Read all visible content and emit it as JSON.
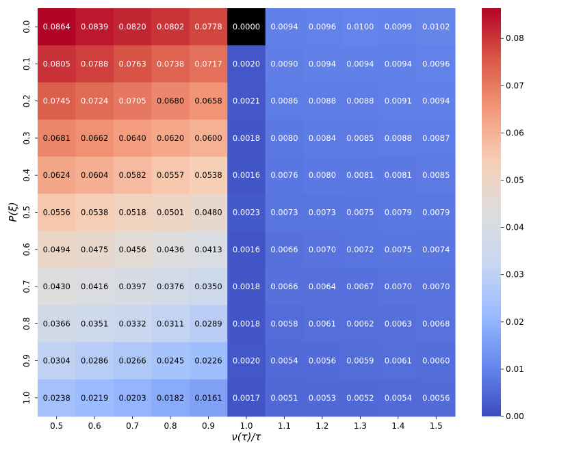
{
  "chart_data": {
    "type": "heatmap",
    "title": "",
    "xlabel": "ν(τ)/τ",
    "ylabel": "P(ξ)",
    "x_categories": [
      "0.5",
      "0.6",
      "0.7",
      "0.8",
      "0.9",
      "1.0",
      "1.1",
      "1.2",
      "1.3",
      "1.4",
      "1.5"
    ],
    "y_categories": [
      "0.0",
      "0.1",
      "0.2",
      "0.3",
      "0.4",
      "0.5",
      "0.6",
      "0.7",
      "0.8",
      "0.9",
      "1.0"
    ],
    "values": [
      [
        0.0864,
        0.0839,
        0.082,
        0.0802,
        0.0778,
        0.0,
        0.0094,
        0.0096,
        0.01,
        0.0099,
        0.0102
      ],
      [
        0.0805,
        0.0788,
        0.0763,
        0.0738,
        0.0717,
        0.002,
        0.009,
        0.0094,
        0.0094,
        0.0094,
        0.0096
      ],
      [
        0.0745,
        0.0724,
        0.0705,
        0.068,
        0.0658,
        0.0021,
        0.0086,
        0.0088,
        0.0088,
        0.0091,
        0.0094
      ],
      [
        0.0681,
        0.0662,
        0.064,
        0.062,
        0.06,
        0.0018,
        0.008,
        0.0084,
        0.0085,
        0.0088,
        0.0087
      ],
      [
        0.0624,
        0.0604,
        0.0582,
        0.0557,
        0.0538,
        0.0016,
        0.0076,
        0.008,
        0.0081,
        0.0081,
        0.0085
      ],
      [
        0.0556,
        0.0538,
        0.0518,
        0.0501,
        0.048,
        0.0023,
        0.0073,
        0.0073,
        0.0075,
        0.0079,
        0.0079
      ],
      [
        0.0494,
        0.0475,
        0.0456,
        0.0436,
        0.0413,
        0.0016,
        0.0066,
        0.007,
        0.0072,
        0.0075,
        0.0074
      ],
      [
        0.043,
        0.0416,
        0.0397,
        0.0376,
        0.035,
        0.0018,
        0.0066,
        0.0064,
        0.0067,
        0.007,
        0.007
      ],
      [
        0.0366,
        0.0351,
        0.0332,
        0.0311,
        0.0289,
        0.0018,
        0.0058,
        0.0061,
        0.0062,
        0.0063,
        0.0068
      ],
      [
        0.0304,
        0.0286,
        0.0266,
        0.0245,
        0.0226,
        0.002,
        0.0054,
        0.0056,
        0.0059,
        0.0061,
        0.006
      ],
      [
        0.0238,
        0.0219,
        0.0203,
        0.0182,
        0.0161,
        0.0017,
        0.0051,
        0.0053,
        0.0052,
        0.0054,
        0.0056
      ]
    ],
    "cell_labels": [
      [
        "0.0864",
        "0.0839",
        "0.0820",
        "0.0802",
        "0.0778",
        "0.0000",
        "0.0094",
        "0.0096",
        "0.0100",
        "0.0099",
        "0.0102"
      ],
      [
        "0.0805",
        "0.0788",
        "0.0763",
        "0.0738",
        "0.0717",
        "0.0020",
        "0.0090",
        "0.0094",
        "0.0094",
        "0.0094",
        "0.0096"
      ],
      [
        "0.0745",
        "0.0724",
        "0.0705",
        "0.0680",
        "0.0658",
        "0.0021",
        "0.0086",
        "0.0088",
        "0.0088",
        "0.0091",
        "0.0094"
      ],
      [
        "0.0681",
        "0.0662",
        "0.0640",
        "0.0620",
        "0.0600",
        "0.0018",
        "0.0080",
        "0.0084",
        "0.0085",
        "0.0088",
        "0.0087"
      ],
      [
        "0.0624",
        "0.0604",
        "0.0582",
        "0.0557",
        "0.0538",
        "0.0016",
        "0.0076",
        "0.0080",
        "0.0081",
        "0.0081",
        "0.0085"
      ],
      [
        "0.0556",
        "0.0538",
        "0.0518",
        "0.0501",
        "0.0480",
        "0.0023",
        "0.0073",
        "0.0073",
        "0.0075",
        "0.0079",
        "0.0079"
      ],
      [
        "0.0494",
        "0.0475",
        "0.0456",
        "0.0436",
        "0.0413",
        "0.0016",
        "0.0066",
        "0.0070",
        "0.0072",
        "0.0075",
        "0.0074"
      ],
      [
        "0.0430",
        "0.0416",
        "0.0397",
        "0.0376",
        "0.0350",
        "0.0018",
        "0.0066",
        "0.0064",
        "0.0067",
        "0.0070",
        "0.0070"
      ],
      [
        "0.0366",
        "0.0351",
        "0.0332",
        "0.0311",
        "0.0289",
        "0.0018",
        "0.0058",
        "0.0061",
        "0.0062",
        "0.0063",
        "0.0068"
      ],
      [
        "0.0304",
        "0.0286",
        "0.0266",
        "0.0245",
        "0.0226",
        "0.0020",
        "0.0054",
        "0.0056",
        "0.0059",
        "0.0061",
        "0.0060"
      ],
      [
        "0.0238",
        "0.0219",
        "0.0203",
        "0.0182",
        "0.0161",
        "0.0017",
        "0.0051",
        "0.0053",
        "0.0052",
        "0.0054",
        "0.0056"
      ]
    ],
    "highlight_cell": {
      "row": 0,
      "col": 5,
      "color": "#000000"
    },
    "colormap": "coolwarm",
    "vmin": 0.0,
    "vmax": 0.0864,
    "colorbar_ticks": [
      0.0,
      0.01,
      0.02,
      0.03,
      0.04,
      0.05,
      0.06,
      0.07,
      0.08
    ],
    "colorbar_tick_labels": [
      "0.00",
      "0.01",
      "0.02",
      "0.03",
      "0.04",
      "0.05",
      "0.06",
      "0.07",
      "0.08"
    ],
    "colors": {
      "stops": [
        "#3b4cc0",
        "#6788ee",
        "#9abbff",
        "#c9d7f0",
        "#dddddd",
        "#f6cfb6",
        "#f49a7b",
        "#d95847",
        "#b40426"
      ],
      "dark_text": "#000000",
      "light_text": "#ffffff"
    }
  }
}
